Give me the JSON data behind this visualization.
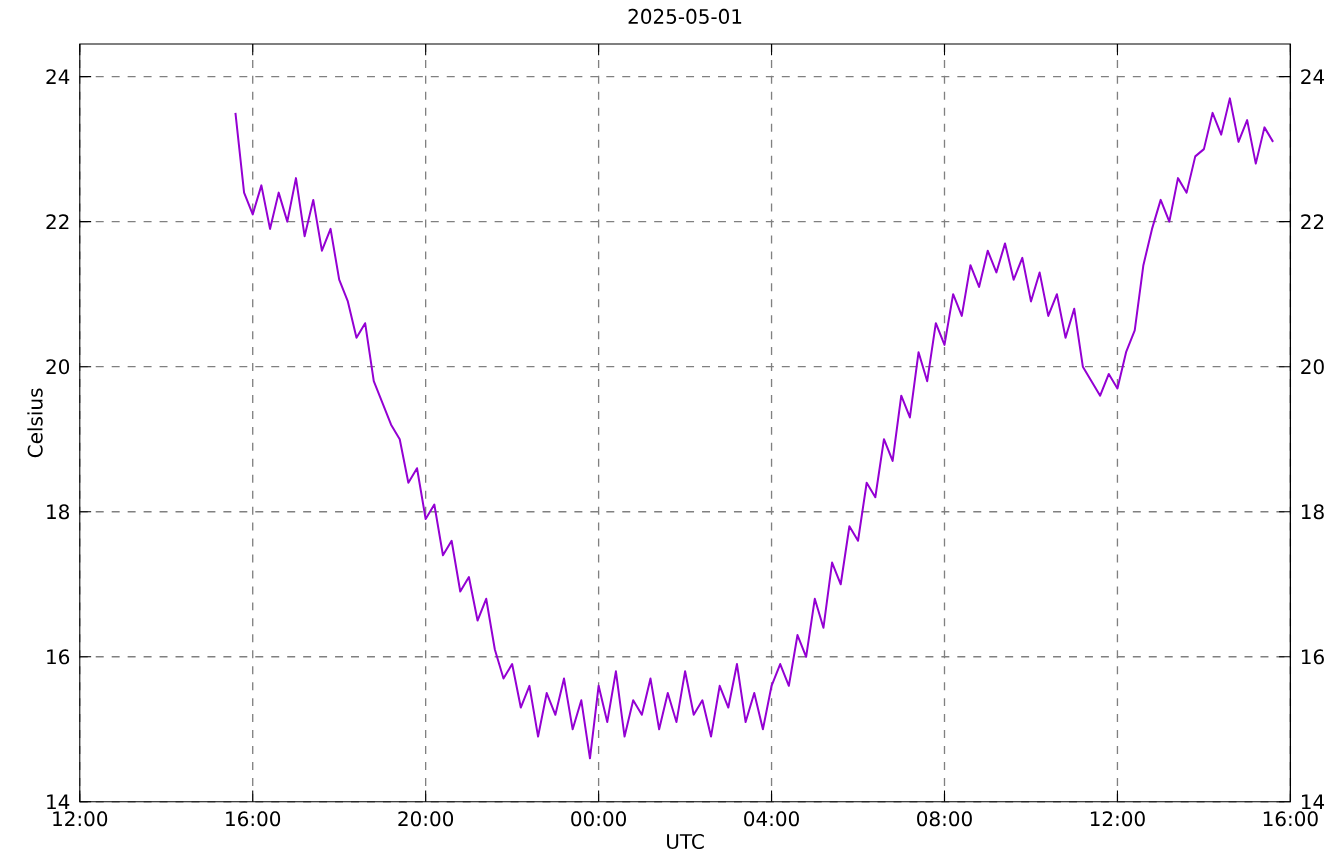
{
  "chart_data": {
    "type": "line",
    "title": "2025-05-01",
    "xlabel": "UTC",
    "ylabel": "Celsius",
    "xlim": [
      "2025-04-30T12:00",
      "2025-05-01T16:00"
    ],
    "ylim": [
      14,
      24.45
    ],
    "y2lim": [
      14,
      24.45
    ],
    "xticks": [
      {
        "value": "2025-04-30T12:00",
        "label": "12:00"
      },
      {
        "value": "2025-04-30T16:00",
        "label": "16:00"
      },
      {
        "value": "2025-04-30T20:00",
        "label": "20:00"
      },
      {
        "value": "2025-05-01T00:00",
        "label": "00:00"
      },
      {
        "value": "2025-05-01T04:00",
        "label": "04:00"
      },
      {
        "value": "2025-05-01T08:00",
        "label": "08:00"
      },
      {
        "value": "2025-05-01T12:00",
        "label": "12:00"
      },
      {
        "value": "2025-05-01T16:00",
        "label": "16:00"
      }
    ],
    "yticks": [
      14,
      16,
      18,
      20,
      22,
      24
    ],
    "y2ticks": [
      14,
      16,
      18,
      20,
      22,
      24
    ],
    "grid": true,
    "x": [
      "2025-04-30T15:36",
      "2025-04-30T15:48",
      "2025-04-30T16:00",
      "2025-04-30T16:12",
      "2025-04-30T16:24",
      "2025-04-30T16:36",
      "2025-04-30T16:48",
      "2025-04-30T17:00",
      "2025-04-30T17:12",
      "2025-04-30T17:24",
      "2025-04-30T17:36",
      "2025-04-30T17:48",
      "2025-04-30T18:00",
      "2025-04-30T18:12",
      "2025-04-30T18:24",
      "2025-04-30T18:36",
      "2025-04-30T18:48",
      "2025-04-30T19:00",
      "2025-04-30T19:12",
      "2025-04-30T19:24",
      "2025-04-30T19:36",
      "2025-04-30T19:48",
      "2025-04-30T20:00",
      "2025-04-30T20:12",
      "2025-04-30T20:24",
      "2025-04-30T20:36",
      "2025-04-30T20:48",
      "2025-04-30T21:00",
      "2025-04-30T21:12",
      "2025-04-30T21:24",
      "2025-04-30T21:36",
      "2025-04-30T21:48",
      "2025-04-30T22:00",
      "2025-04-30T22:12",
      "2025-04-30T22:24",
      "2025-04-30T22:36",
      "2025-04-30T22:48",
      "2025-04-30T23:00",
      "2025-04-30T23:12",
      "2025-04-30T23:24",
      "2025-04-30T23:36",
      "2025-04-30T23:48",
      "2025-05-01T00:00",
      "2025-05-01T00:12",
      "2025-05-01T00:24",
      "2025-05-01T00:36",
      "2025-05-01T00:48",
      "2025-05-01T01:00",
      "2025-05-01T01:12",
      "2025-05-01T01:24",
      "2025-05-01T01:36",
      "2025-05-01T01:48",
      "2025-05-01T02:00",
      "2025-05-01T02:12",
      "2025-05-01T02:24",
      "2025-05-01T02:36",
      "2025-05-01T02:48",
      "2025-05-01T03:00",
      "2025-05-01T03:12",
      "2025-05-01T03:24",
      "2025-05-01T03:36",
      "2025-05-01T03:48",
      "2025-05-01T04:00",
      "2025-05-01T04:12",
      "2025-05-01T04:24",
      "2025-05-01T04:36",
      "2025-05-01T04:48",
      "2025-05-01T05:00",
      "2025-05-01T05:12",
      "2025-05-01T05:24",
      "2025-05-01T05:36",
      "2025-05-01T05:48",
      "2025-05-01T06:00",
      "2025-05-01T06:12",
      "2025-05-01T06:24",
      "2025-05-01T06:36",
      "2025-05-01T06:48",
      "2025-05-01T07:00",
      "2025-05-01T07:12",
      "2025-05-01T07:24",
      "2025-05-01T07:36",
      "2025-05-01T07:48",
      "2025-05-01T08:00",
      "2025-05-01T08:12",
      "2025-05-01T08:24",
      "2025-05-01T08:36",
      "2025-05-01T08:48",
      "2025-05-01T09:00",
      "2025-05-01T09:12",
      "2025-05-01T09:24",
      "2025-05-01T09:36",
      "2025-05-01T09:48",
      "2025-05-01T10:00",
      "2025-05-01T10:12",
      "2025-05-01T10:24",
      "2025-05-01T10:36",
      "2025-05-01T10:48",
      "2025-05-01T11:00",
      "2025-05-01T11:12",
      "2025-05-01T11:24",
      "2025-05-01T11:36",
      "2025-05-01T11:48",
      "2025-05-01T12:00",
      "2025-05-01T12:12",
      "2025-05-01T12:24",
      "2025-05-01T12:36",
      "2025-05-01T12:48",
      "2025-05-01T13:00",
      "2025-05-01T13:12",
      "2025-05-01T13:24",
      "2025-05-01T13:36",
      "2025-05-01T13:48",
      "2025-05-01T14:00",
      "2025-05-01T14:12",
      "2025-05-01T14:24",
      "2025-05-01T14:36",
      "2025-05-01T14:48",
      "2025-05-01T15:00",
      "2025-05-01T15:12",
      "2025-05-01T15:24",
      "2025-05-01T15:36"
    ],
    "series": [
      {
        "color": "#9400d3",
        "values": [
          23.5,
          22.4,
          22.1,
          22.5,
          21.9,
          22.4,
          22.0,
          22.6,
          21.8,
          22.3,
          21.6,
          21.9,
          21.2,
          20.9,
          20.4,
          20.6,
          19.8,
          19.5,
          19.2,
          19.0,
          18.4,
          18.6,
          17.9,
          18.1,
          17.4,
          17.6,
          16.9,
          17.1,
          16.5,
          16.8,
          16.1,
          15.7,
          15.9,
          15.3,
          15.6,
          14.9,
          15.5,
          15.2,
          15.7,
          15.0,
          15.4,
          14.6,
          15.6,
          15.1,
          15.8,
          14.9,
          15.4,
          15.2,
          15.7,
          15.0,
          15.5,
          15.1,
          15.8,
          15.2,
          15.4,
          14.9,
          15.6,
          15.3,
          15.9,
          15.1,
          15.5,
          15.0,
          15.6,
          15.9,
          15.6,
          16.3,
          16.0,
          16.8,
          16.4,
          17.3,
          17.0,
          17.8,
          17.6,
          18.4,
          18.2,
          19.0,
          18.7,
          19.6,
          19.3,
          20.2,
          19.8,
          20.6,
          20.3,
          21.0,
          20.7,
          21.4,
          21.1,
          21.6,
          21.3,
          21.7,
          21.2,
          21.5,
          20.9,
          21.3,
          20.7,
          21.0,
          20.4,
          20.8,
          20.0,
          19.8,
          19.6,
          19.9,
          19.7,
          20.2,
          20.5,
          21.4,
          21.9,
          22.3,
          22.0,
          22.6,
          22.4,
          22.9,
          23.0,
          23.5,
          23.2,
          23.7,
          23.1,
          23.4,
          22.8,
          23.3,
          23.1
        ]
      }
    ]
  }
}
